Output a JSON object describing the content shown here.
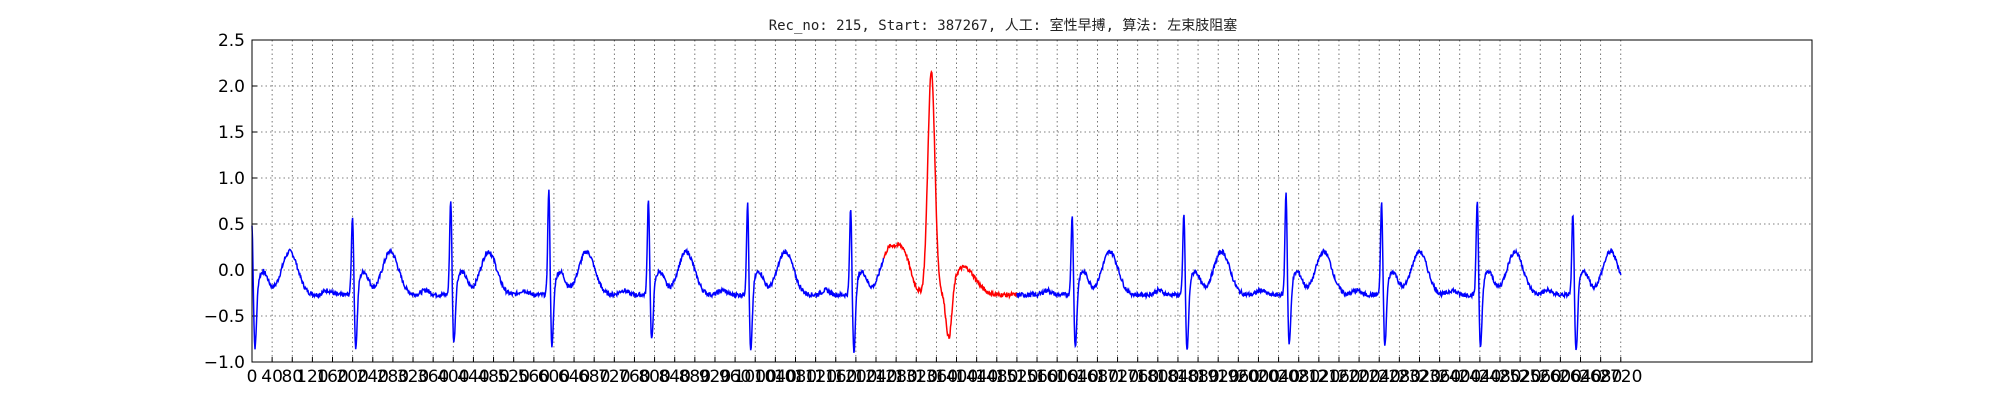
{
  "chart_data": {
    "type": "line",
    "title": "Rec_no: 215, Start: 387267, 人工: 室性早搏, 算法: 左束肢阻塞",
    "xlabel": "",
    "ylabel": "",
    "xlim": [
      0,
      3100
    ],
    "ylim": [
      -1.0,
      2.5
    ],
    "grid": true,
    "grid_style": "dotted",
    "y_ticks": [
      -1.0,
      -0.5,
      0.0,
      0.5,
      1.0,
      1.5,
      2.0,
      2.5
    ],
    "y_tick_labels": [
      "−1.0",
      "−0.5",
      "0.0",
      "0.5",
      "1.0",
      "1.5",
      "2.0",
      "2.5"
    ],
    "x_ticks": [
      0,
      40,
      80,
      120,
      160,
      200,
      240,
      280,
      320,
      360,
      400,
      440,
      480,
      520,
      560,
      600,
      640,
      680,
      720,
      760,
      800,
      840,
      880,
      920,
      960,
      1000,
      1040,
      1080,
      1120,
      1160,
      1200,
      1240,
      1280,
      1320,
      1360,
      1400,
      1440,
      1480,
      1520,
      1560,
      1600,
      1640,
      1680,
      1720,
      1760,
      1800,
      1840,
      1880,
      1920,
      1960,
      2000,
      2040,
      2080,
      2120,
      2160,
      2200,
      2240,
      2280,
      2320,
      2360,
      2400,
      2440,
      2480,
      2520,
      2560,
      2600,
      2640,
      2680,
      2720
    ],
    "normal_color": "#0000ff",
    "highlight_color": "#ff0000",
    "x_end": 2720,
    "highlight_segment": [
      1255,
      1520
    ],
    "normal_beats": [
      {
        "r_time": 0,
        "r_amp": 0.55,
        "s_amp": -0.93
      },
      {
        "r_time": 200,
        "r_amp": 0.65,
        "s_amp": -0.93
      },
      {
        "r_time": 395,
        "r_amp": 0.82,
        "s_amp": -0.88
      },
      {
        "r_time": 590,
        "r_amp": 0.93,
        "s_amp": -0.92
      },
      {
        "r_time": 788,
        "r_amp": 0.83,
        "s_amp": -0.86
      },
      {
        "r_time": 985,
        "r_amp": 0.79,
        "s_amp": -0.98
      },
      {
        "r_time": 1190,
        "r_amp": 0.73,
        "s_amp": -0.97
      },
      {
        "r_time": 1630,
        "r_amp": 0.64,
        "s_amp": -0.92
      },
      {
        "r_time": 1852,
        "r_amp": 0.68,
        "s_amp": -0.97
      },
      {
        "r_time": 2055,
        "r_amp": 0.91,
        "s_amp": -0.9
      },
      {
        "r_time": 2245,
        "r_amp": 0.78,
        "s_amp": -0.92
      },
      {
        "r_time": 2435,
        "r_amp": 0.82,
        "s_amp": -0.95
      },
      {
        "r_time": 2625,
        "r_amp": 0.68,
        "s_amp": -0.98
      }
    ],
    "pvc_beat": {
      "start": 1330,
      "peak_time": 1350,
      "peak_amp": 2.15,
      "trough_time": 1385,
      "trough_amp": -0.95
    },
    "baseline": -0.27,
    "t_wave_amp": 0.22
  }
}
